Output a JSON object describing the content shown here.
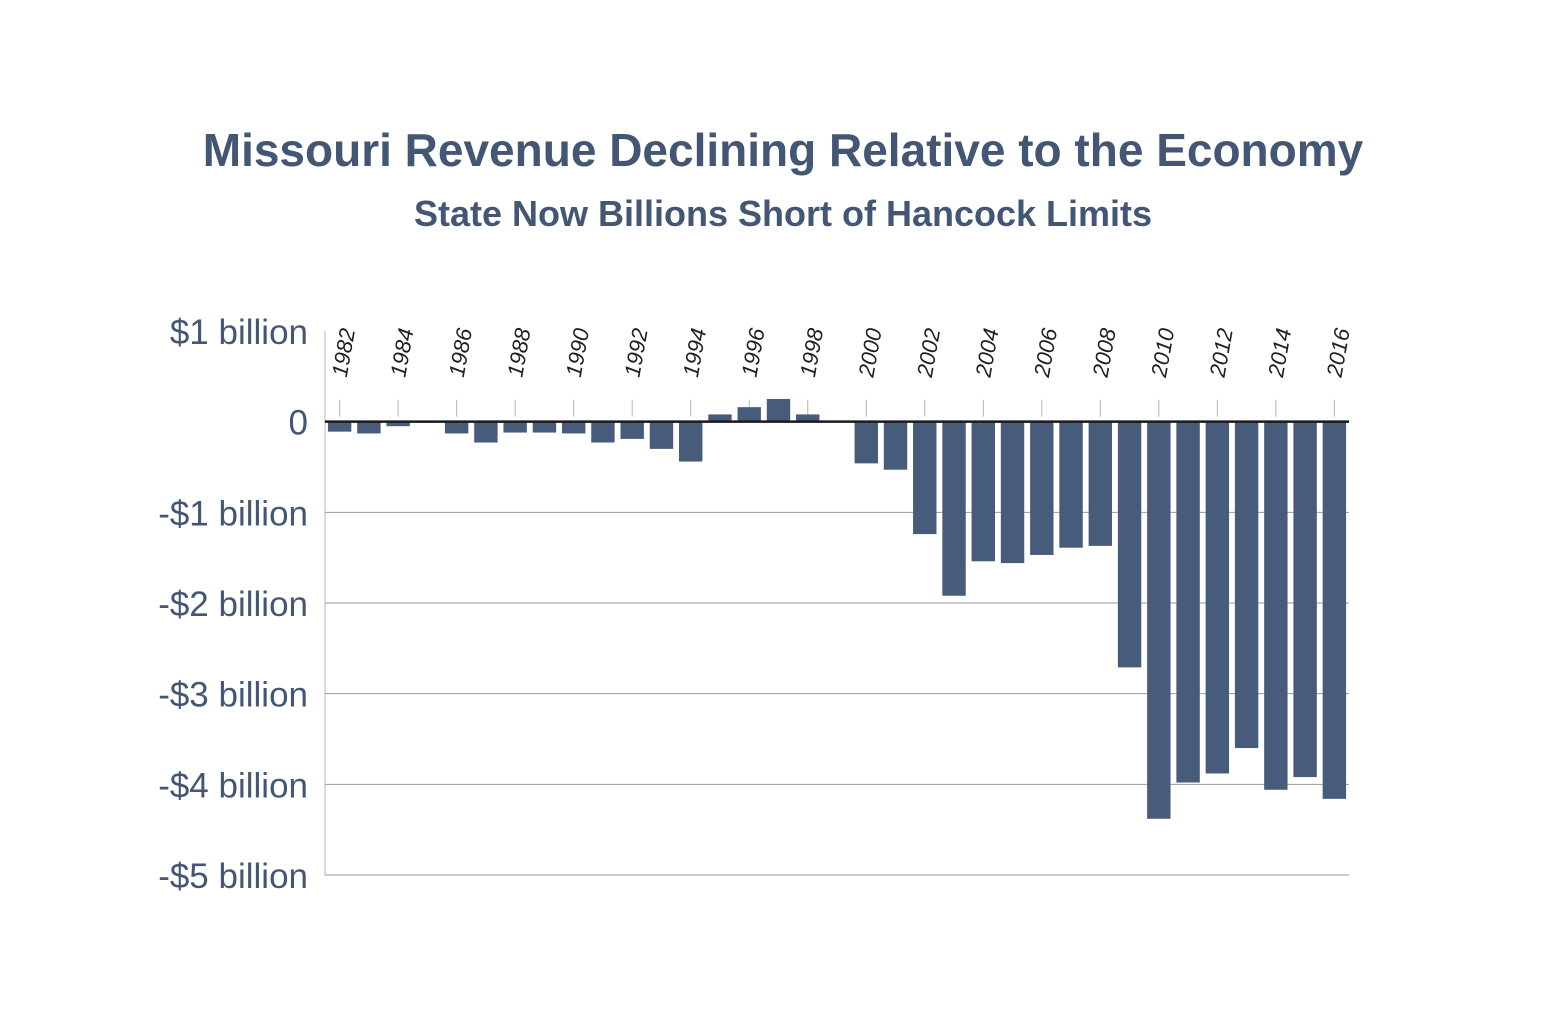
{
  "chart_data": {
    "type": "bar",
    "title": "Missouri Revenue Declining Relative to the Economy",
    "subtitle": "State Now Billions Short of Hancock Limits",
    "xlabel": "",
    "ylabel": "",
    "ylim": [
      -5,
      1
    ],
    "grid": true,
    "bar_color": "#475b7b",
    "text_color": "#435673",
    "y_ticks": [
      {
        "value": 1,
        "label": "$1 billion"
      },
      {
        "value": 0,
        "label": "0"
      },
      {
        "value": -1,
        "label": "-$1 billion"
      },
      {
        "value": -2,
        "label": "-$2 billion"
      },
      {
        "value": -3,
        "label": "-$3 billion"
      },
      {
        "value": -4,
        "label": "-$4 billion"
      },
      {
        "value": -5,
        "label": "-$5 billion"
      }
    ],
    "x_tick_labels": [
      "1982",
      "1984",
      "1986",
      "1988",
      "1990",
      "1992",
      "1994",
      "1996",
      "1998",
      "2000",
      "2002",
      "2004",
      "2006",
      "2008",
      "2010",
      "2012",
      "2014",
      "2016"
    ],
    "categories": [
      "1982",
      "1983",
      "1984",
      "1985",
      "1986",
      "1987",
      "1988",
      "1989",
      "1990",
      "1991",
      "1992",
      "1993",
      "1994",
      "1995",
      "1996",
      "1997",
      "1998",
      "1999",
      "2000",
      "2001",
      "2002",
      "2003",
      "2004",
      "2005",
      "2006",
      "2007",
      "2008",
      "2009",
      "2010",
      "2011",
      "2012",
      "2013",
      "2014",
      "2015",
      "2016"
    ],
    "values": [
      -0.11,
      -0.13,
      -0.05,
      -0.01,
      -0.13,
      -0.23,
      -0.12,
      -0.12,
      -0.13,
      -0.23,
      -0.19,
      -0.3,
      -0.44,
      0.08,
      0.16,
      0.25,
      0.08,
      0.01,
      -0.46,
      -0.53,
      -1.24,
      -1.92,
      -1.54,
      -1.56,
      -1.47,
      -1.39,
      -1.37,
      -2.71,
      -4.38,
      -3.98,
      -3.88,
      -3.6,
      -4.06,
      -3.92,
      -4.16
    ]
  }
}
